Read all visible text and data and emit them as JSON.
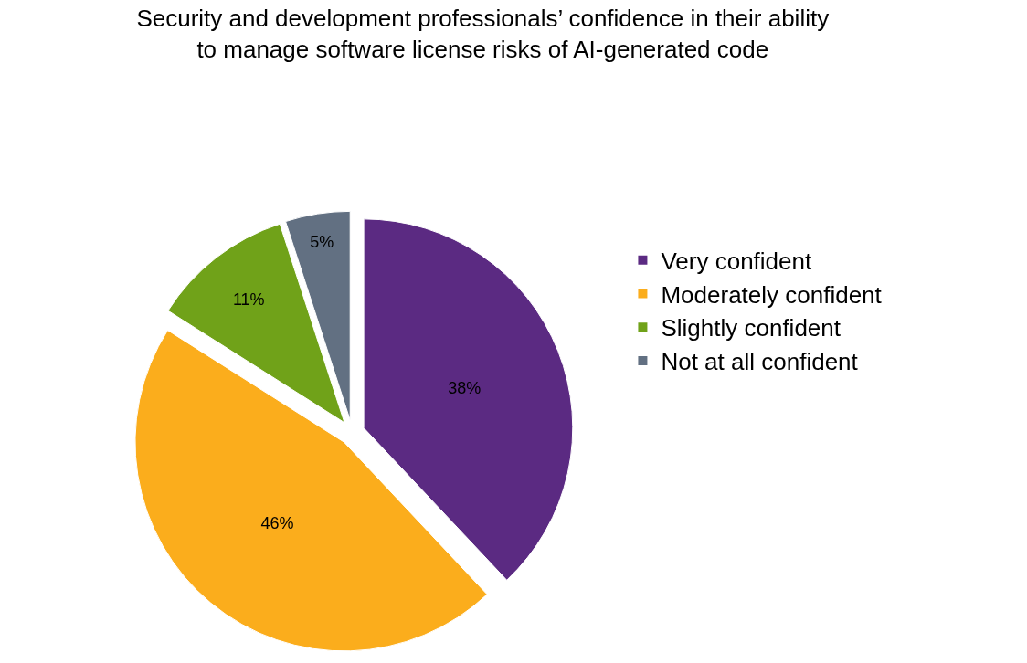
{
  "chart_data": {
    "type": "pie",
    "title": "Security and development professionals’ confidence in their ability\nto manage software license risks of AI-generated code",
    "categories": [
      "Very confident",
      "Moderately confident",
      "Slightly confident",
      "Not at all confident"
    ],
    "values": [
      38,
      46,
      11,
      5
    ],
    "value_labels": [
      "38%",
      "46%",
      "11%",
      "5%"
    ],
    "colors": [
      "#5b2a82",
      "#fbad1c",
      "#70a219",
      "#627082"
    ],
    "legend": "right"
  }
}
